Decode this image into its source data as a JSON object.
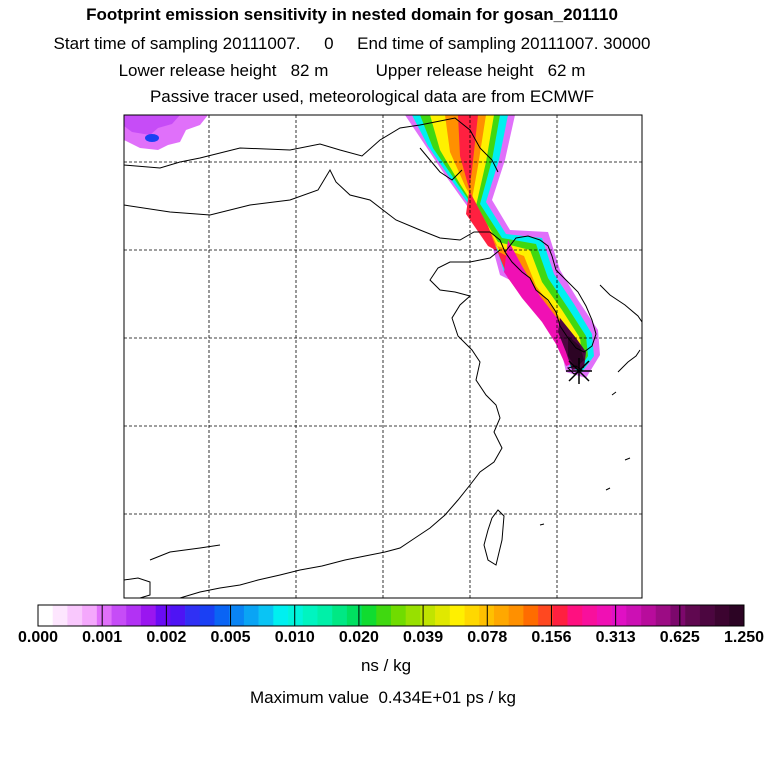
{
  "header": {
    "title": "Footprint emission sensitivity in nested domain for gosan_201110",
    "sampling_line": "Start time of sampling 20111007.     0     End time of sampling 20111007. 30000",
    "release_line": "Lower release height   82 m          Upper release height   62 m",
    "tracer_line": "Passive tracer used, meteorological data are from ECMWF"
  },
  "colorbar": {
    "labels": [
      "0.000",
      "0.001",
      "0.002",
      "0.005",
      "0.010",
      "0.020",
      "0.039",
      "0.078",
      "0.156",
      "0.313",
      "0.625",
      "1.250"
    ],
    "colors": [
      "#ffffff",
      "#fde6fe",
      "#f9c8fd",
      "#f4a8fc",
      "#e070fa",
      "#c64cf7",
      "#b232f4",
      "#9a16f0",
      "#6a0cf4",
      "#4e14f4",
      "#3030f4",
      "#1a40f4",
      "#0a64f4",
      "#0a84f4",
      "#0aa4f4",
      "#0ac4f4",
      "#00f0f0",
      "#00f4dc",
      "#00f4c0",
      "#00f0a8",
      "#00e884",
      "#00e060",
      "#10dc30",
      "#40d810",
      "#70dc00",
      "#98e000",
      "#c0e400",
      "#e0e800",
      "#fff000",
      "#ffd800",
      "#ffc000",
      "#ffa800",
      "#ff9000",
      "#ff6c00",
      "#ff4820",
      "#ff2040",
      "#ff1080",
      "#f8109c",
      "#f010b4",
      "#e010c4",
      "#cc10b4",
      "#b80c9c",
      "#9c0c84",
      "#7c086c",
      "#600850",
      "#4c0640",
      "#3c0430",
      "#2c0424"
    ],
    "units": "ns / kg"
  },
  "footer": {
    "maximum_value": "Maximum value  0.434E+01 ps / kg"
  },
  "map": {
    "release_marker": "x-marker",
    "grid_style": "dashed"
  }
}
